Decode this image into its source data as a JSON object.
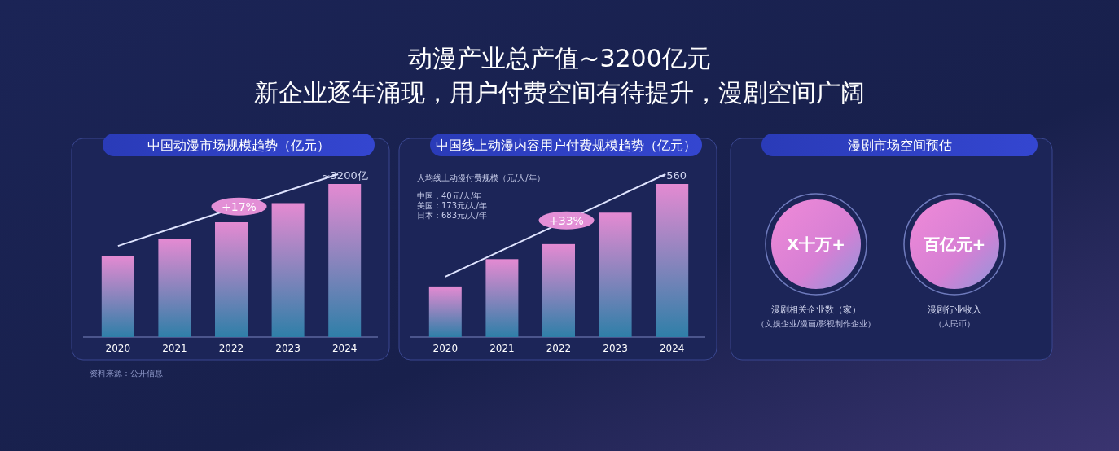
{
  "chart_data": [
    {
      "type": "other",
      "title": "动漫产业总产值~3200亿元",
      "subtitle": "新企业逐年涌现，用户付费空间有待提升，漫剧空间广阔"
    },
    {
      "type": "bar",
      "title": "中国动漫市场规模趋势（亿元）",
      "categories": [
        "2020",
        "2021",
        "2022",
        "2023",
        "2024"
      ],
      "values": [
        1700,
        2050,
        2400,
        2800,
        3200
      ],
      "color": "#e48ad2",
      "value_labels": [
        null,
        null,
        null,
        null,
        "~3200亿"
      ],
      "annotations": [
        "+17%",
        "资料来源：公开信息"
      ]
    },
    {
      "type": "bar",
      "title": "中国线上动漫内容用户付费规模趋势（亿元）",
      "categories": [
        "2020",
        "2021",
        "2022",
        "2023",
        "2024"
      ],
      "values": [
        185,
        285,
        340,
        455,
        560
      ],
      "color": "#e48ad2",
      "value_labels": [
        null,
        null,
        null,
        null,
        "~560"
      ],
      "annotations": [
        "+33%",
        "人均线上动漫付费规模（元/人/年）",
        "中国：40元/人/年",
        "美国：173元/人/年",
        "日本：683元/人/年"
      ]
    },
    {
      "type": "other",
      "title": "漫剧市场空间预估",
      "annotations": [
        "X十万+",
        "漫剧相关企业数（家）",
        "（文娱企业/漫画/影视制作企业）",
        "百亿元+",
        "漫剧行业收入",
        "（人民币）"
      ]
    }
  ]
}
